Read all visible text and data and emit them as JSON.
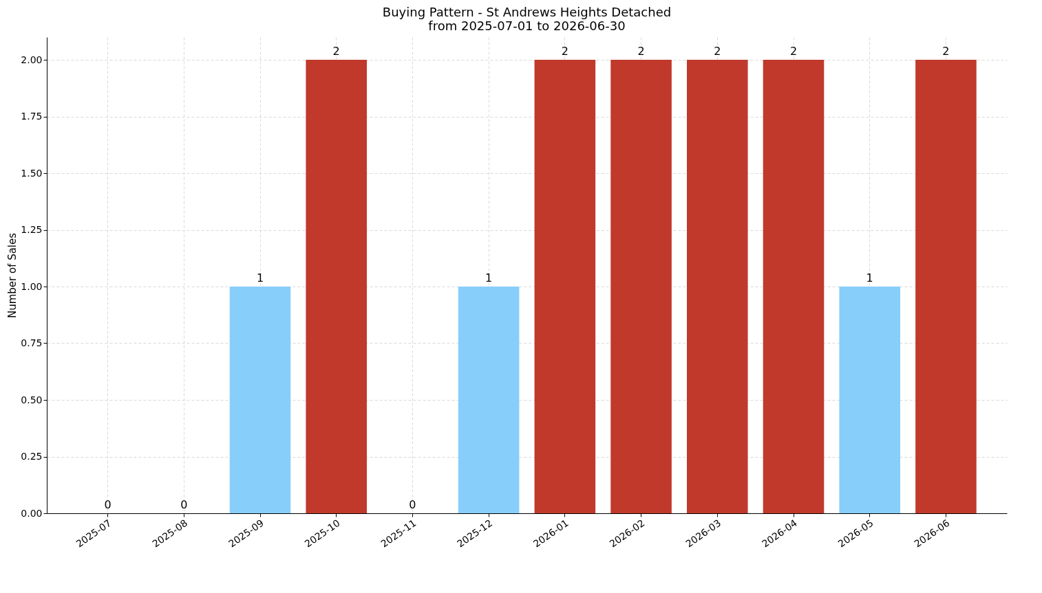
{
  "chart_data": {
    "type": "bar",
    "title": "Buying Pattern - St Andrews Heights Detached",
    "subtitle": "from 2025-07-01 to 2026-06-30",
    "ylabel": "Number of Sales",
    "categories": [
      "2025-07",
      "2025-08",
      "2025-09",
      "2025-10",
      "2025-11",
      "2025-12",
      "2026-01",
      "2026-02",
      "2026-03",
      "2026-04",
      "2026-05",
      "2026-06"
    ],
    "values": [
      0,
      0,
      1,
      2,
      0,
      1,
      2,
      2,
      2,
      2,
      1,
      2
    ],
    "colors": [
      "#87cefa",
      "#87cefa",
      "#87cefa",
      "#c0392b",
      "#87cefa",
      "#87cefa",
      "#c0392b",
      "#c0392b",
      "#c0392b",
      "#c0392b",
      "#87cefa",
      "#c0392b"
    ],
    "ylim": [
      0,
      2.1
    ],
    "yticks": [
      {
        "value": 0,
        "label": "0.00"
      },
      {
        "value": 0.25,
        "label": "0.25"
      },
      {
        "value": 0.5,
        "label": "0.50"
      },
      {
        "value": 0.75,
        "label": "0.75"
      },
      {
        "value": 1,
        "label": "1.00"
      },
      {
        "value": 1.25,
        "label": "1.25"
      },
      {
        "value": 1.5,
        "label": "1.50"
      },
      {
        "value": 1.75,
        "label": "1.75"
      },
      {
        "value": 2,
        "label": "2.00"
      }
    ],
    "grid": true,
    "data_labels": true
  }
}
